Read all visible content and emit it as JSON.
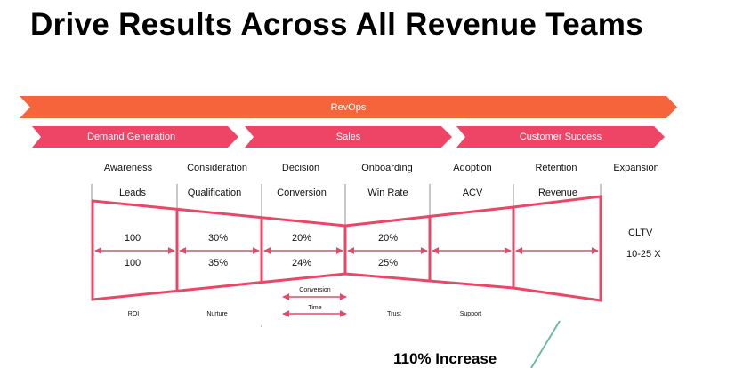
{
  "title": "Drive Results Across All Revenue Teams",
  "colors": {
    "revops": "#f5643a",
    "team": "#ee4567",
    "funnel": "#ee4567",
    "callout_line": "#6dbd9e"
  },
  "revops_label": "RevOps",
  "teams": [
    "Demand Generation",
    "Sales",
    "Customer Success"
  ],
  "stages": [
    "Awareness",
    "Consideration",
    "Decision",
    "Onboarding",
    "Adoption",
    "Retention",
    "Expansion"
  ],
  "metrics": [
    "Leads",
    "Qualification",
    "Conversion",
    "Win Rate",
    "ACV",
    "Revenue"
  ],
  "rates_top": [
    "100",
    "30%",
    "20%",
    "20%"
  ],
  "rates_bottom": [
    "100",
    "35%",
    "24%",
    "25%"
  ],
  "expansion_metric": {
    "label": "CLTV",
    "value": "10-25 X"
  },
  "decision_arrows": [
    "Conversion",
    "Time"
  ],
  "bottom_labels": [
    "ROI",
    "Nurture",
    "Trust",
    "Support"
  ],
  "callout": "110% Increase"
}
